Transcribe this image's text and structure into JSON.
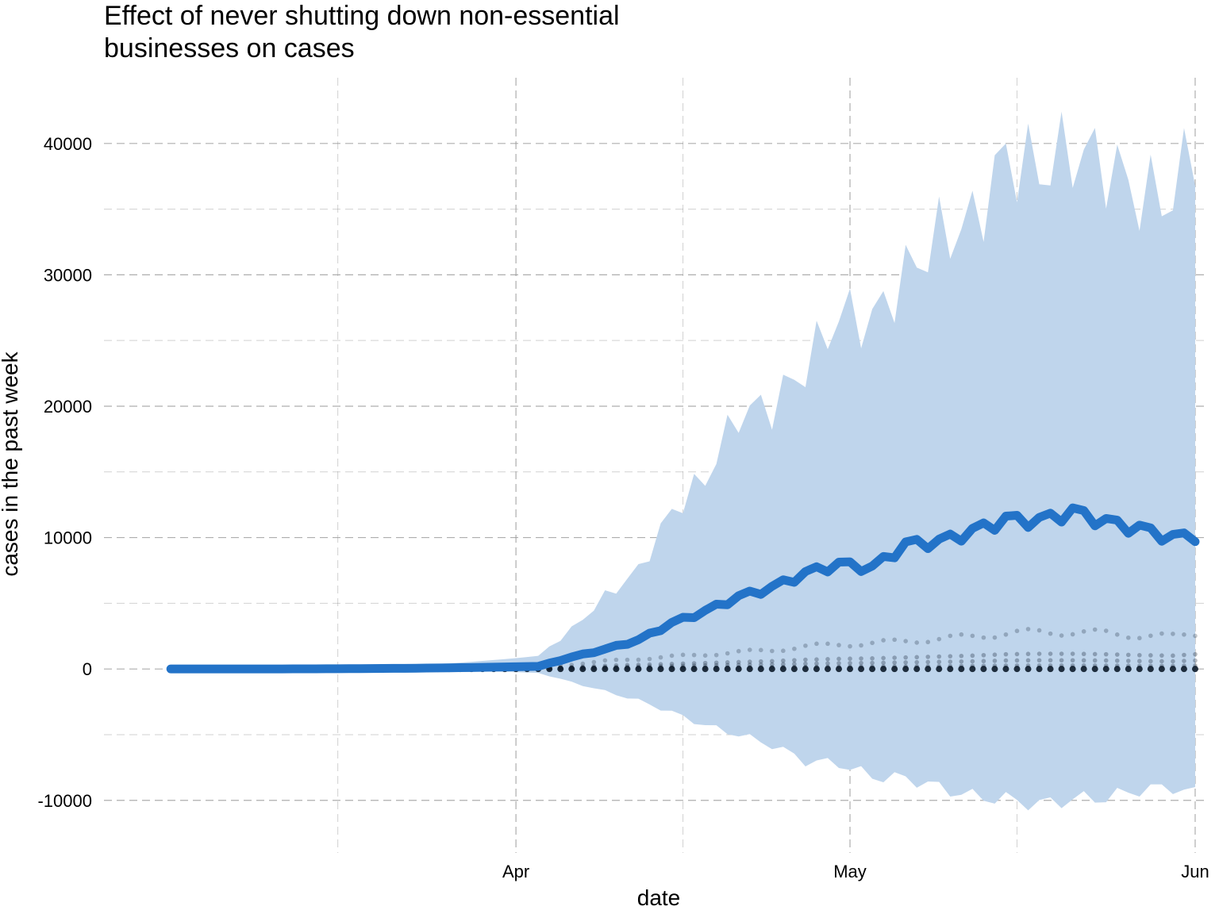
{
  "chart_data": {
    "type": "line",
    "title_lines": [
      "Effect of never shutting down non-essential",
      "businesses on cases"
    ],
    "xlabel": "date",
    "ylabel": "cases in the past week",
    "x_start_date": "2020-03-01",
    "x_end_date": "2020-06-01",
    "xlim": [
      "2020-02-24",
      "2020-06-02"
    ],
    "x_ticks": [
      {
        "date": "2020-04-01",
        "label": "Apr"
      },
      {
        "date": "2020-05-01",
        "label": "May"
      },
      {
        "date": "2020-06-01",
        "label": "Jun"
      }
    ],
    "x_minor_dates": [
      "2020-03-16",
      "2020-04-16",
      "2020-05-16"
    ],
    "ylim": [
      -14000,
      45000
    ],
    "y_ticks": [
      -10000,
      0,
      10000,
      20000,
      30000,
      40000
    ],
    "y_minor": [
      -5000,
      5000,
      15000,
      25000,
      35000
    ],
    "grid": true,
    "colors": {
      "line": "#2373c8",
      "band": "#bfd5ec",
      "points": "#0d1b2a",
      "grid": "#9a9a9a"
    },
    "series_points": {
      "dates": [
        "2020-04-03",
        "2020-04-06",
        "2020-04-09",
        "2020-04-12",
        "2020-04-15",
        "2020-04-18",
        "2020-04-21",
        "2020-04-24",
        "2020-04-27",
        "2020-04-30",
        "2020-05-03",
        "2020-05-06",
        "2020-05-09",
        "2020-05-12",
        "2020-05-15",
        "2020-05-18",
        "2020-05-21",
        "2020-05-24",
        "2020-05-27",
        "2020-05-30",
        "2020-06-01"
      ],
      "mean": [
        200,
        900,
        1500,
        2200,
        3500,
        4400,
        5500,
        6200,
        7300,
        8000,
        7700,
        9500,
        9700,
        10500,
        11400,
        11300,
        12000,
        11200,
        10700,
        10000,
        10200
      ],
      "upper": [
        1000,
        3000,
        5500,
        7500,
        12000,
        14500,
        19500,
        20000,
        23000,
        27000,
        26500,
        30000,
        33000,
        34000,
        39000,
        38000,
        39500,
        38500,
        36000,
        36000,
        40000
      ],
      "lower": [
        -300,
        -1000,
        -1700,
        -2400,
        -3300,
        -4300,
        -5000,
        -5800,
        -7000,
        -7200,
        -8200,
        -8300,
        -9000,
        -9700,
        -9900,
        -10300,
        -9900,
        -9800,
        -9200,
        -9000,
        -9500
      ],
      "scatter_upper": [
        200,
        400,
        700,
        900,
        1100,
        1300,
        1500,
        1700,
        2000,
        2200,
        2300,
        2500,
        2700,
        2900,
        3200,
        3300,
        3300,
        3200,
        3000,
        2900,
        3200
      ]
    }
  }
}
